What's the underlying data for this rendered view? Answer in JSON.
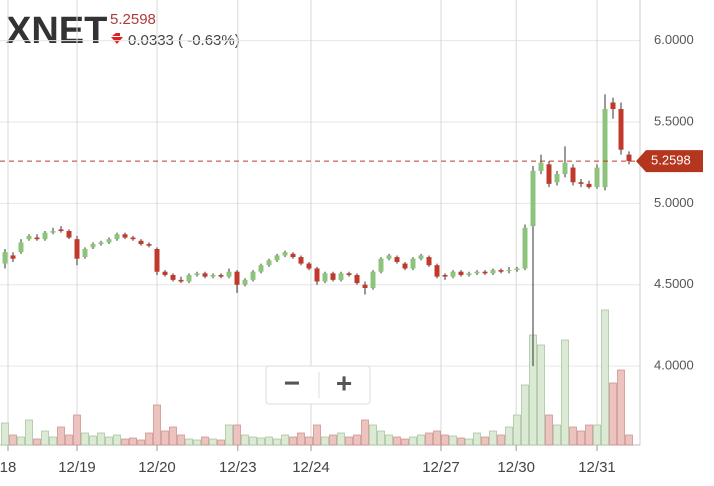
{
  "header": {
    "symbol": "XNET",
    "change": "0.0333 ( -0.63%)"
  },
  "controls": {
    "zoom_out": "−",
    "zoom_in": "+"
  },
  "chart_data": {
    "type": "candlestick",
    "ylim": [
      3.515,
      6.25
    ],
    "yticks": [
      {
        "value": 4.0,
        "label": "4.0000"
      },
      {
        "value": 4.5,
        "label": "4.5000"
      },
      {
        "value": 5.0,
        "label": "5.0000"
      },
      {
        "value": 5.5,
        "label": "5.5000"
      },
      {
        "value": 6.0,
        "label": "6.0000"
      }
    ],
    "xticks": [
      {
        "value": 0.375,
        "label": "18"
      },
      {
        "value": 9,
        "label": "12/19"
      },
      {
        "value": 19,
        "label": "12/20"
      },
      {
        "value": 29.1,
        "label": "12/23"
      },
      {
        "value": 38.25,
        "label": "12/24"
      },
      {
        "value": 54.5,
        "label": "12/27"
      },
      {
        "value": 63.9,
        "label": "12/30"
      },
      {
        "value": 74,
        "label": "12/31"
      }
    ],
    "volume_lim": [
      0,
      150
    ],
    "grid": true,
    "up_color": "#8cc47c",
    "down_color": "#c0392b",
    "last_price": 5.2598,
    "candles": [
      [
        4.63,
        4.72,
        4.6,
        4.7,
        22
      ],
      [
        4.68,
        4.7,
        4.64,
        4.66,
        10
      ],
      [
        4.7,
        4.78,
        4.69,
        4.76,
        8
      ],
      [
        4.78,
        4.81,
        4.77,
        4.8,
        25
      ],
      [
        4.79,
        4.81,
        4.77,
        4.78,
        6
      ],
      [
        4.78,
        4.83,
        4.77,
        4.82,
        14
      ],
      [
        4.82,
        4.85,
        4.81,
        4.83,
        8
      ],
      [
        4.84,
        4.86,
        4.82,
        4.83,
        18
      ],
      [
        4.83,
        4.84,
        4.78,
        4.79,
        10
      ],
      [
        4.78,
        4.8,
        4.62,
        4.66,
        30
      ],
      [
        4.67,
        4.73,
        4.66,
        4.72,
        12
      ],
      [
        4.73,
        4.76,
        4.72,
        4.75,
        9
      ],
      [
        4.75,
        4.77,
        4.74,
        4.76,
        12
      ],
      [
        4.76,
        4.79,
        4.75,
        4.78,
        8
      ],
      [
        4.78,
        4.82,
        4.77,
        4.81,
        10
      ],
      [
        4.81,
        4.82,
        4.78,
        4.79,
        6
      ],
      [
        4.79,
        4.8,
        4.77,
        4.78,
        7
      ],
      [
        4.77,
        4.78,
        4.74,
        4.75,
        5
      ],
      [
        4.75,
        4.76,
        4.73,
        4.74,
        12
      ],
      [
        4.72,
        4.73,
        4.56,
        4.58,
        40
      ],
      [
        4.58,
        4.59,
        4.55,
        4.56,
        14
      ],
      [
        4.56,
        4.57,
        4.52,
        4.53,
        18
      ],
      [
        4.53,
        4.55,
        4.51,
        4.52,
        10
      ],
      [
        4.52,
        4.57,
        4.51,
        4.56,
        6
      ],
      [
        4.56,
        4.58,
        4.55,
        4.57,
        5
      ],
      [
        4.57,
        4.58,
        4.54,
        4.55,
        8
      ],
      [
        4.55,
        4.57,
        4.54,
        4.56,
        6
      ],
      [
        4.56,
        4.57,
        4.54,
        4.55,
        5
      ],
      [
        4.55,
        4.6,
        4.54,
        4.58,
        20
      ],
      [
        4.58,
        4.59,
        4.45,
        4.5,
        20
      ],
      [
        4.5,
        4.54,
        4.49,
        4.53,
        10
      ],
      [
        4.53,
        4.59,
        4.52,
        4.58,
        8
      ],
      [
        4.58,
        4.63,
        4.57,
        4.62,
        7
      ],
      [
        4.62,
        4.66,
        4.61,
        4.65,
        8
      ],
      [
        4.65,
        4.69,
        4.64,
        4.68,
        6
      ],
      [
        4.68,
        4.71,
        4.67,
        4.7,
        10
      ],
      [
        4.69,
        4.7,
        4.66,
        4.67,
        8
      ],
      [
        4.67,
        4.68,
        4.62,
        4.63,
        12
      ],
      [
        4.63,
        4.64,
        4.59,
        4.6,
        8
      ],
      [
        4.6,
        4.61,
        4.5,
        4.52,
        20
      ],
      [
        4.52,
        4.58,
        4.51,
        4.57,
        8
      ],
      [
        4.57,
        4.58,
        4.52,
        4.53,
        10
      ],
      [
        4.53,
        4.58,
        4.52,
        4.57,
        12
      ],
      [
        4.57,
        4.58,
        4.55,
        4.56,
        8
      ],
      [
        4.56,
        4.57,
        4.5,
        4.51,
        10
      ],
      [
        4.5,
        4.52,
        4.44,
        4.48,
        25
      ],
      [
        4.48,
        4.59,
        4.47,
        4.58,
        20
      ],
      [
        4.58,
        4.67,
        4.57,
        4.66,
        14
      ],
      [
        4.66,
        4.69,
        4.65,
        4.68,
        10
      ],
      [
        4.67,
        4.68,
        4.63,
        4.64,
        8
      ],
      [
        4.63,
        4.64,
        4.59,
        4.6,
        6
      ],
      [
        4.6,
        4.67,
        4.59,
        4.66,
        8
      ],
      [
        4.66,
        4.69,
        4.65,
        4.68,
        10
      ],
      [
        4.67,
        4.68,
        4.61,
        4.62,
        12
      ],
      [
        4.62,
        4.63,
        4.54,
        4.55,
        14
      ],
      [
        4.56,
        4.57,
        4.53,
        4.55,
        10
      ],
      [
        4.55,
        4.59,
        4.54,
        4.58,
        9
      ],
      [
        4.58,
        4.59,
        4.55,
        4.56,
        7
      ],
      [
        4.56,
        4.58,
        4.55,
        4.57,
        6
      ],
      [
        4.57,
        4.59,
        4.56,
        4.58,
        12
      ],
      [
        4.58,
        4.59,
        4.56,
        4.57,
        8
      ],
      [
        4.57,
        4.6,
        4.56,
        4.59,
        14
      ],
      [
        4.59,
        4.6,
        4.57,
        4.58,
        10
      ],
      [
        4.59,
        4.61,
        4.57,
        4.59,
        18
      ],
      [
        4.59,
        4.61,
        4.58,
        4.6,
        30
      ],
      [
        4.6,
        4.87,
        4.59,
        4.85,
        60
      ],
      [
        4.86,
        5.23,
        4.0,
        5.2,
        110
      ],
      [
        5.2,
        5.3,
        5.18,
        5.25,
        100
      ],
      [
        5.24,
        5.26,
        5.1,
        5.12,
        30
      ],
      [
        5.13,
        5.2,
        5.11,
        5.18,
        20
      ],
      [
        5.18,
        5.35,
        5.16,
        5.25,
        105
      ],
      [
        5.22,
        5.24,
        5.11,
        5.13,
        18
      ],
      [
        5.13,
        5.15,
        5.1,
        5.12,
        14
      ],
      [
        5.12,
        5.14,
        5.09,
        5.1,
        20
      ],
      [
        5.1,
        5.24,
        5.09,
        5.22,
        20
      ],
      [
        5.1,
        5.67,
        5.08,
        5.58,
        135
      ],
      [
        5.62,
        5.65,
        5.52,
        5.58,
        62
      ],
      [
        5.58,
        5.62,
        5.3,
        5.33,
        75
      ],
      [
        5.3,
        5.32,
        5.24,
        5.26,
        10
      ]
    ]
  }
}
